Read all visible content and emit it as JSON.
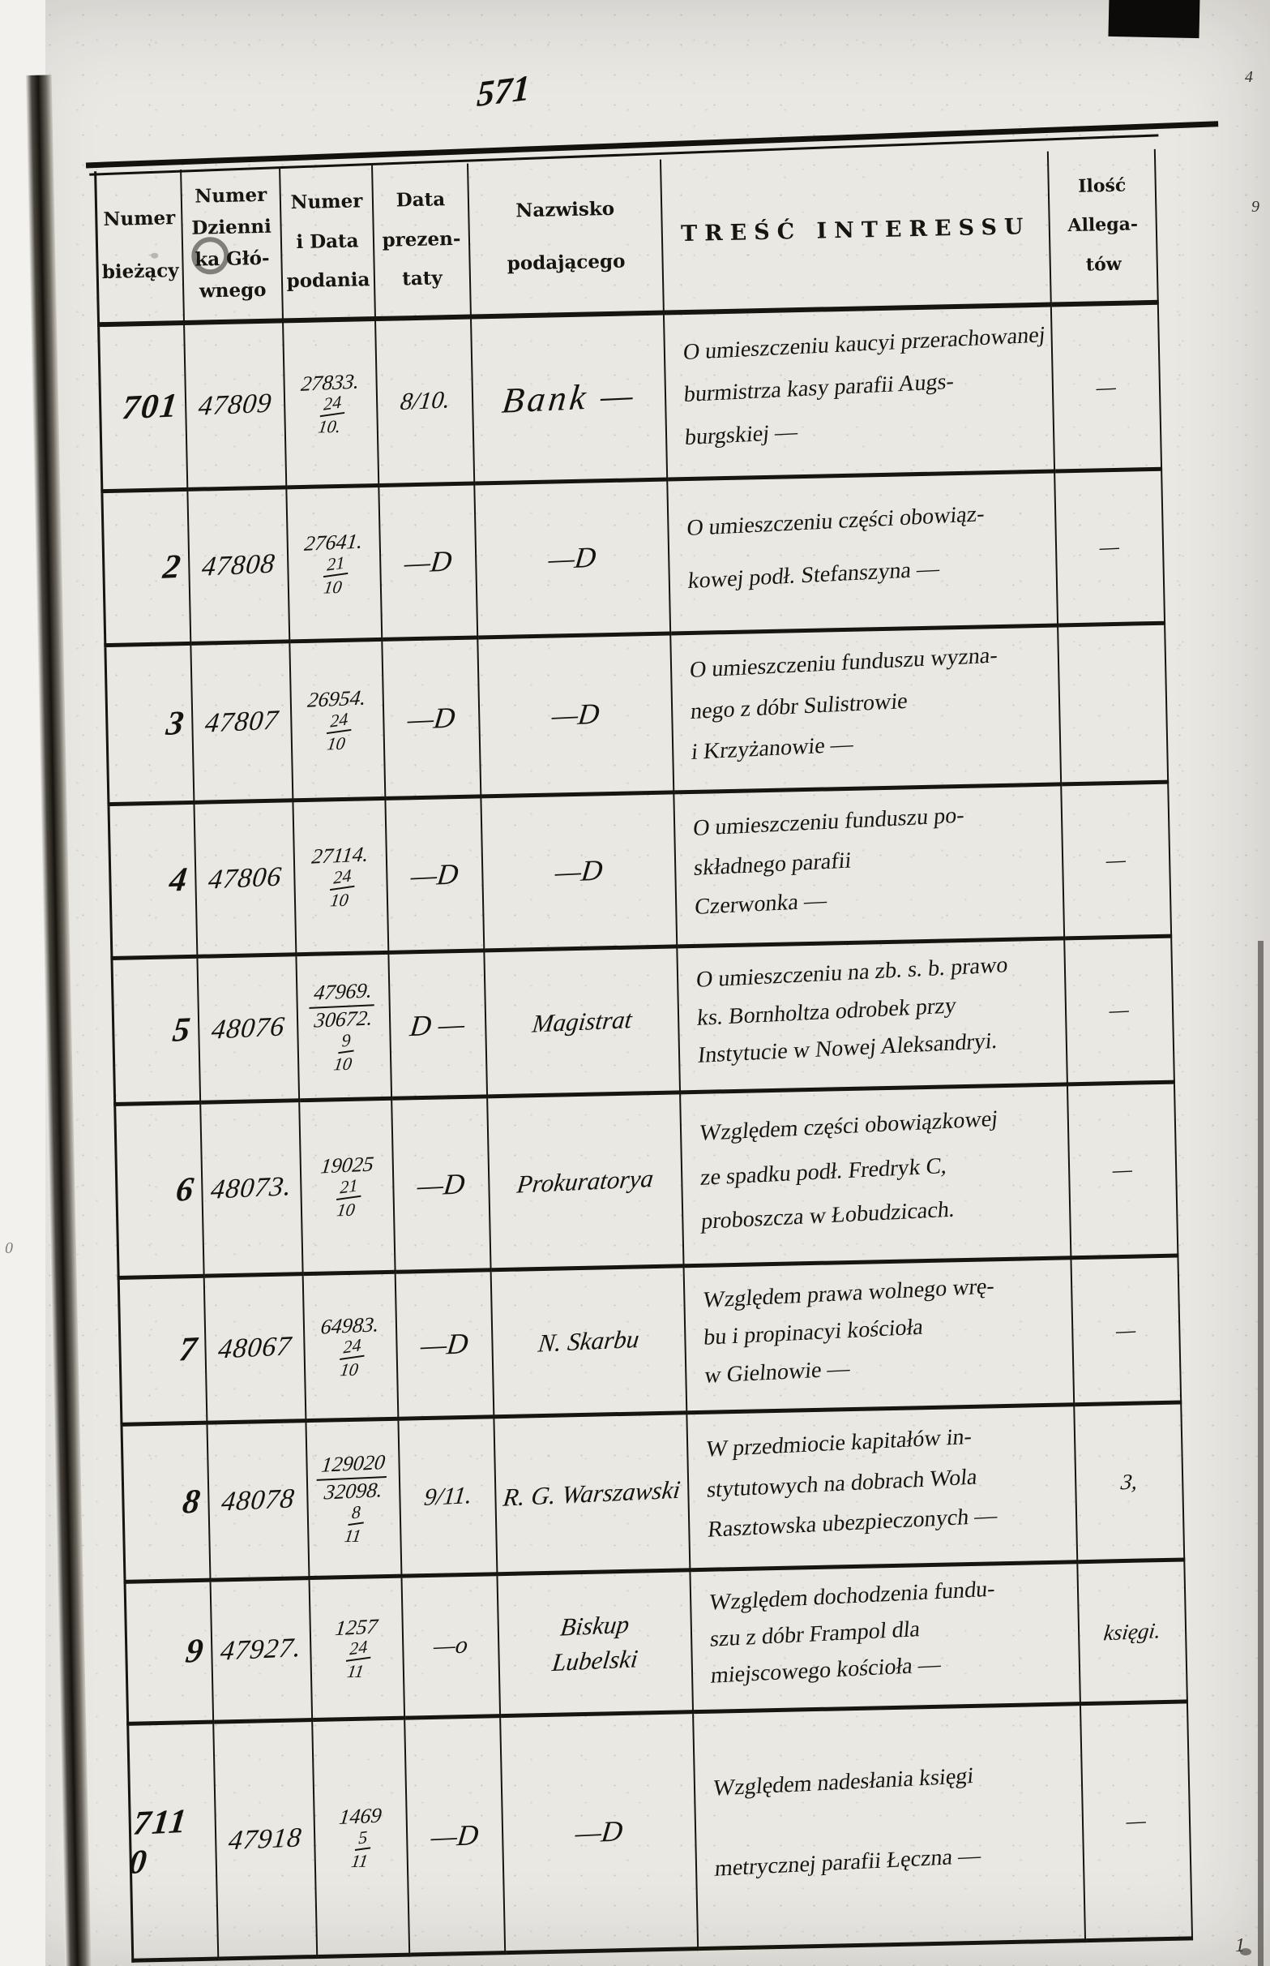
{
  "page": {
    "handwritten_page_number": "571"
  },
  "table": {
    "headers": [
      {
        "id": "numer-biezacy",
        "lines": [
          "Numer",
          "bieżący"
        ]
      },
      {
        "id": "numer-dziennika",
        "lines": [
          "Numer",
          "Dzienni",
          "ka Głó-",
          "wnego"
        ]
      },
      {
        "id": "numer-data-podania",
        "lines": [
          "Numer",
          "i Data",
          "podania"
        ]
      },
      {
        "id": "data-prezentaty",
        "lines": [
          "Data",
          "prezen-",
          "taty"
        ]
      },
      {
        "id": "nazwisko-podajacego",
        "lines": [
          "Nazwisko",
          "podającego"
        ]
      },
      {
        "id": "tresc-interessu",
        "lines": [
          "TREŚĆ INTERESSU"
        ]
      },
      {
        "id": "ilosc-allegatow",
        "lines": [
          "Ilość",
          "Allega-",
          "tów"
        ]
      }
    ],
    "rows": [
      {
        "biezacy": "701",
        "dziennik": "47809",
        "podanie": [
          "27833.",
          "24/10."
        ],
        "prezentata": "8/10.",
        "nazwisko": [
          "Bank —"
        ],
        "nazwisko_big": true,
        "tresc": [
          "O umieszczeniu kaucyi przerachowanej",
          "burmistrza kasy parafii Augs-",
          "burgskiej —"
        ],
        "allegaty": "—"
      },
      {
        "biezacy": "2",
        "dziennik": "47808",
        "podanie": [
          "27641.",
          "21/10"
        ],
        "prezentata": "—D",
        "nazwisko": [
          "—D"
        ],
        "nazwisko_big": false,
        "tresc": [
          "O umieszczeniu części obowiąz-",
          "kowej podł. Stefanszyna —"
        ],
        "allegaty": "—"
      },
      {
        "biezacy": "3",
        "dziennik": "47807",
        "podanie": [
          "26954.",
          "24/10"
        ],
        "prezentata": "—D",
        "nazwisko": [
          "—D"
        ],
        "nazwisko_big": false,
        "tresc": [
          "O umieszczeniu funduszu wyzna-",
          "nego z dóbr Sulistrowie",
          "i Krzyżanowie —"
        ],
        "allegaty": ""
      },
      {
        "biezacy": "4",
        "dziennik": "47806",
        "podanie": [
          "27114.",
          "24/10"
        ],
        "prezentata": "—D",
        "nazwisko": [
          "—D"
        ],
        "nazwisko_big": false,
        "tresc": [
          "O umieszczeniu funduszu po-",
          "składnego parafii",
          "Czerwonka —"
        ],
        "allegaty": "—"
      },
      {
        "biezacy": "5",
        "dziennik": "48076",
        "podanie": [
          "47969.",
          "30672.",
          "9/10"
        ],
        "prezentata": "D —",
        "nazwisko": [
          "Magistrat"
        ],
        "nazwisko_big": false,
        "tresc": [
          "O umieszczeniu na zb. s. b. prawo",
          "ks. Bornholtza odrobek przy",
          "Instytucie w Nowej Aleksandryi."
        ],
        "allegaty": "—"
      },
      {
        "biezacy": "6",
        "dziennik": "48073.",
        "podanie": [
          "19025",
          "21/10"
        ],
        "prezentata": "—D",
        "nazwisko": [
          "Prokuratorya"
        ],
        "nazwisko_big": false,
        "tresc": [
          "Względem części obowiązkowej",
          "ze spadku podł. Fredryk C,",
          "proboszcza w Łobudzicach."
        ],
        "allegaty": "—"
      },
      {
        "biezacy": "7",
        "dziennik": "48067",
        "podanie": [
          "64983.",
          "24/10"
        ],
        "prezentata": "—D",
        "nazwisko": [
          "N. Skarbu"
        ],
        "nazwisko_big": false,
        "tresc": [
          "Względem prawa wolnego wrę-",
          "bu i propinacyi kościoła",
          "w Gielnowie —"
        ],
        "allegaty": "—"
      },
      {
        "biezacy": "8",
        "dziennik": "48078",
        "podanie": [
          "129020",
          "32098.",
          "8/11"
        ],
        "prezentata": "9/11.",
        "nazwisko": [
          "R. G. Warszawski"
        ],
        "nazwisko_big": false,
        "tresc": [
          "W przedmiocie kapitałów in-",
          "stytutowych na dobrach Wola",
          "Rasztowska ubezpieczonych —"
        ],
        "allegaty": "3,"
      },
      {
        "biezacy": "9",
        "dziennik": "47927.",
        "podanie": [
          "1257",
          "24/11"
        ],
        "prezentata": "—o",
        "nazwisko": [
          "Biskup",
          "Lubelski"
        ],
        "nazwisko_big": false,
        "tresc": [
          "Względem dochodzenia fundu-",
          "szu z dóbr Frampol dla",
          "miejscowego kościoła —"
        ],
        "allegaty": "księgi."
      },
      {
        "biezacy": "711 0",
        "dziennik": "47918",
        "podanie": [
          "1469",
          "5/11"
        ],
        "prezentata": "—D",
        "nazwisko": [
          "—D"
        ],
        "nazwisko_big": false,
        "tresc": [
          "Względem nadesłania księgi",
          "metrycznej parafii Łęczna —"
        ],
        "allegaty": "—"
      }
    ]
  },
  "artifacts": {
    "margin_marks": [
      "4",
      "9",
      "1",
      "0"
    ]
  }
}
